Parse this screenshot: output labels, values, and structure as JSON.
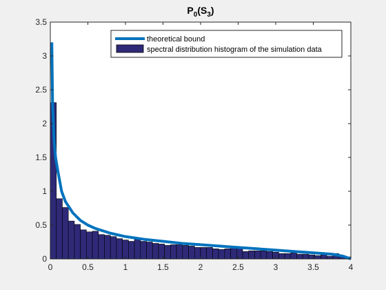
{
  "chart_data": {
    "type": "bar",
    "title": "P0(S3)",
    "title_parts": {
      "base": "P",
      "sub1": "0",
      "paren_open": "(S",
      "sub2": "3",
      "paren_close": ")"
    },
    "xlim": [
      0,
      4
    ],
    "ylim": [
      0,
      3.5
    ],
    "xticks": [
      0,
      0.5,
      1,
      1.5,
      2,
      2.5,
      3,
      3.5,
      4
    ],
    "xtick_labels": [
      "0",
      "0.5",
      "1",
      "1.5",
      "2",
      "2.5",
      "3",
      "3.5",
      "4"
    ],
    "yticks": [
      0,
      0.5,
      1,
      1.5,
      2,
      2.5,
      3,
      3.5
    ],
    "ytick_labels": [
      "0",
      "0.5",
      "1",
      "1.5",
      "2",
      "2.5",
      "3",
      "3.5"
    ],
    "grid": false,
    "legend_position": "top-right",
    "series": [
      {
        "name": "theoretical bound",
        "kind": "line",
        "color": "#0072bd",
        "x": [
          0.02,
          0.03,
          0.05,
          0.07,
          0.1,
          0.15,
          0.2,
          0.3,
          0.4,
          0.5,
          0.6,
          0.8,
          1.0,
          1.25,
          1.5,
          1.75,
          2.0,
          2.25,
          2.5,
          2.75,
          3.0,
          3.25,
          3.5,
          3.75,
          3.9,
          4.0
        ],
        "y": [
          3.2,
          2.3,
          1.75,
          1.5,
          1.3,
          1.0,
          0.85,
          0.68,
          0.57,
          0.5,
          0.45,
          0.38,
          0.33,
          0.29,
          0.26,
          0.23,
          0.21,
          0.19,
          0.17,
          0.15,
          0.13,
          0.11,
          0.09,
          0.07,
          0.04,
          0.0
        ]
      },
      {
        "name": "spectral distribution histogram of the simulation data",
        "kind": "bar",
        "color": "#2e2a78",
        "bin_width": 0.08,
        "x": [
          0.04,
          0.12,
          0.2,
          0.28,
          0.36,
          0.44,
          0.52,
          0.6,
          0.68,
          0.76,
          0.84,
          0.92,
          1.0,
          1.08,
          1.16,
          1.24,
          1.32,
          1.4,
          1.48,
          1.56,
          1.64,
          1.72,
          1.8,
          1.88,
          1.96,
          2.04,
          2.12,
          2.2,
          2.28,
          2.36,
          2.44,
          2.52,
          2.6,
          2.68,
          2.76,
          2.84,
          2.92,
          3.0,
          3.08,
          3.16,
          3.24,
          3.32,
          3.4,
          3.48,
          3.56,
          3.64,
          3.72,
          3.8,
          3.88,
          3.96
        ],
        "values": [
          2.31,
          0.89,
          0.76,
          0.56,
          0.51,
          0.43,
          0.4,
          0.41,
          0.36,
          0.35,
          0.33,
          0.3,
          0.28,
          0.26,
          0.3,
          0.26,
          0.25,
          0.23,
          0.22,
          0.2,
          0.21,
          0.21,
          0.2,
          0.19,
          0.17,
          0.17,
          0.17,
          0.15,
          0.14,
          0.15,
          0.17,
          0.16,
          0.11,
          0.12,
          0.12,
          0.12,
          0.11,
          0.1,
          0.08,
          0.08,
          0.09,
          0.07,
          0.07,
          0.06,
          0.05,
          0.06,
          0.04,
          0.08,
          0.05,
          0.03
        ]
      }
    ]
  }
}
